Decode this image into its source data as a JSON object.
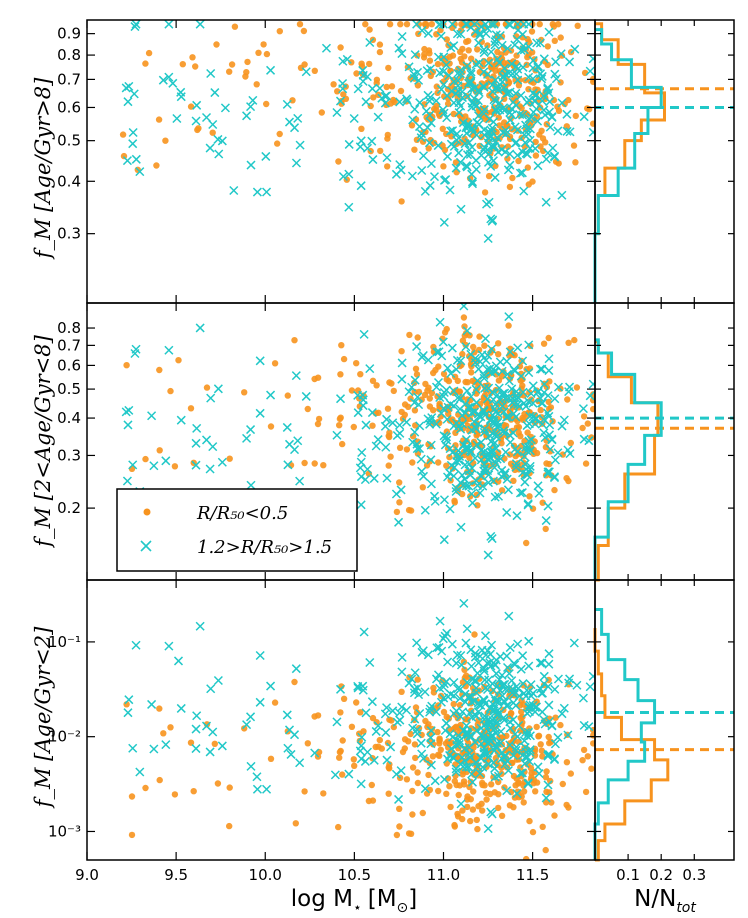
{
  "colors": {
    "series1": "#f7931e",
    "series2": "#21c8c8"
  },
  "chart_data": {
    "type": "scatter",
    "xlabel_main": "log M",
    "xlabel_sub": "⋆",
    "xlabel_unit_open": "[M",
    "xlabel_unit_sub": "⊙",
    "xlabel_unit_close": "]",
    "hist_xlabel_main": "N/N",
    "hist_xlabel_sub": "tot",
    "xlim": [
      9.0,
      11.85
    ],
    "x_ticks": [
      9.0,
      9.5,
      10.0,
      10.5,
      11.0,
      11.5
    ],
    "x_tick_labels": [
      "9.0",
      "9.5",
      "10.0",
      "10.5",
      "11.0",
      "11.5"
    ],
    "hist_xlim": [
      0.0,
      0.42
    ],
    "hist_ticks": [
      0.1,
      0.2,
      0.3
    ],
    "hist_tick_labels": [
      "0.1",
      "0.2",
      "0.3"
    ],
    "legend": {
      "location": "lower-left of middle panel",
      "entries": [
        {
          "marker": "circle",
          "series": "series1",
          "label": "R/R₅₀<0.5"
        },
        {
          "marker": "x",
          "series": "series2",
          "label": "1.2>R/R₅₀>1.5"
        }
      ]
    },
    "panels": [
      {
        "name": "old",
        "ylabel": "f_M [Age/Gyr>8]",
        "yscale": "log",
        "ylim": [
          0.205,
          0.97
        ],
        "y_ticks": [
          0.3,
          0.4,
          0.5,
          0.6,
          0.7,
          0.8,
          0.9
        ],
        "y_tick_labels": [
          "0.3",
          "0.4",
          "0.5",
          "0.6",
          "0.7",
          "0.8",
          "0.9"
        ],
        "series1": {
          "center_y": 0.66,
          "spread": 0.11,
          "median_line": 0.665,
          "hist_edges": [
            0.205,
            0.3,
            0.37,
            0.43,
            0.5,
            0.56,
            0.65,
            0.76,
            0.87,
            0.95
          ],
          "hist_counts": [
            0.0,
            0.01,
            0.03,
            0.09,
            0.14,
            0.21,
            0.15,
            0.07,
            0.02
          ]
        },
        "series2": {
          "center_y": 0.62,
          "spread": 0.12,
          "median_line": 0.6,
          "hist_edges": [
            0.205,
            0.3,
            0.37,
            0.43,
            0.52,
            0.6,
            0.67,
            0.78,
            0.85,
            0.92
          ],
          "hist_counts": [
            0.0,
            0.01,
            0.07,
            0.12,
            0.16,
            0.2,
            0.11,
            0.05,
            0.02
          ]
        }
      },
      {
        "name": "intermediate",
        "ylabel": "f_M [2<Age/Gyr<8]",
        "yscale": "log",
        "ylim": [
          0.115,
          0.97
        ],
        "y_ticks": [
          0.2,
          0.3,
          0.4,
          0.5,
          0.6,
          0.7,
          0.8
        ],
        "y_tick_labels": [
          "0.2",
          "0.3",
          "0.4",
          "0.5",
          "0.6",
          "0.7",
          "0.8"
        ],
        "series1": {
          "center_y": 0.4,
          "spread": 0.16,
          "median_line": 0.37,
          "hist_edges": [
            0.115,
            0.15,
            0.2,
            0.26,
            0.35,
            0.45,
            0.55,
            0.66,
            0.72
          ],
          "hist_counts": [
            0.01,
            0.04,
            0.09,
            0.18,
            0.19,
            0.11,
            0.04,
            0.01
          ]
        },
        "series2": {
          "center_y": 0.38,
          "spread": 0.16,
          "median_line": 0.4,
          "hist_edges": [
            0.115,
            0.16,
            0.21,
            0.28,
            0.35,
            0.45,
            0.56,
            0.66,
            0.73
          ],
          "hist_counts": [
            0.0,
            0.04,
            0.1,
            0.15,
            0.2,
            0.12,
            0.05,
            0.01
          ]
        }
      },
      {
        "name": "young",
        "ylabel": "f_M [Age/Gyr<2]",
        "yscale": "log",
        "ylim": [
          0.0005,
          0.45
        ],
        "y_ticks": [
          0.001,
          0.01,
          0.1
        ],
        "y_tick_labels": [
          "10⁻³",
          "10⁻²",
          "10⁻¹"
        ],
        "series1": {
          "center_y": 0.007,
          "spread": 0.45,
          "median_line": 0.0073,
          "hist_edges": [
            0.0005,
            0.0008,
            0.0012,
            0.0021,
            0.0035,
            0.0057,
            0.0093,
            0.016,
            0.027,
            0.046,
            0.08,
            0.14
          ],
          "hist_counts": [
            0.01,
            0.03,
            0.09,
            0.17,
            0.22,
            0.18,
            0.08,
            0.03,
            0.02,
            0.01,
            0.0
          ]
        },
        "series2": {
          "center_y": 0.018,
          "spread": 0.45,
          "median_line": 0.018,
          "hist_edges": [
            0.0005,
            0.0012,
            0.002,
            0.0035,
            0.0055,
            0.0088,
            0.014,
            0.024,
            0.04,
            0.065,
            0.12,
            0.22
          ],
          "hist_counts": [
            0.0,
            0.01,
            0.04,
            0.1,
            0.15,
            0.14,
            0.18,
            0.13,
            0.09,
            0.04,
            0.02
          ]
        }
      }
    ]
  }
}
